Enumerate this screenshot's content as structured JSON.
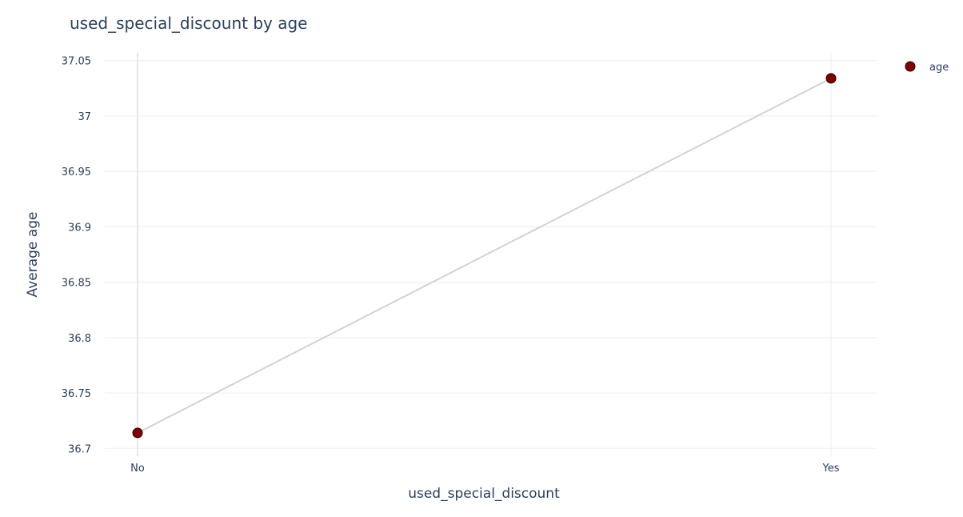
{
  "chart_data": {
    "type": "line",
    "title": "used_special_discount by age",
    "xlabel": "used_special_discount",
    "ylabel": "Average age",
    "categories": [
      "No",
      "Yes"
    ],
    "series": [
      {
        "name": "age",
        "values": [
          36.714,
          37.034
        ]
      }
    ],
    "ylim": [
      36.693,
      37.057
    ],
    "yticks": [
      36.7,
      36.75,
      36.8,
      36.85,
      36.9,
      36.95,
      37,
      37.05
    ],
    "ytick_labels": [
      "36.7",
      "36.75",
      "36.8",
      "36.85",
      "36.9",
      "36.95",
      "37",
      "37.05"
    ],
    "grid": true,
    "legend_position": "top-right"
  },
  "colors": {
    "marker_fill": "#800000",
    "marker_stroke": "#2b0000",
    "line": "#d3d3d3",
    "grid": "#ebeef3",
    "zero_line": "#e6e6e6",
    "text": "#2a3f5f"
  }
}
